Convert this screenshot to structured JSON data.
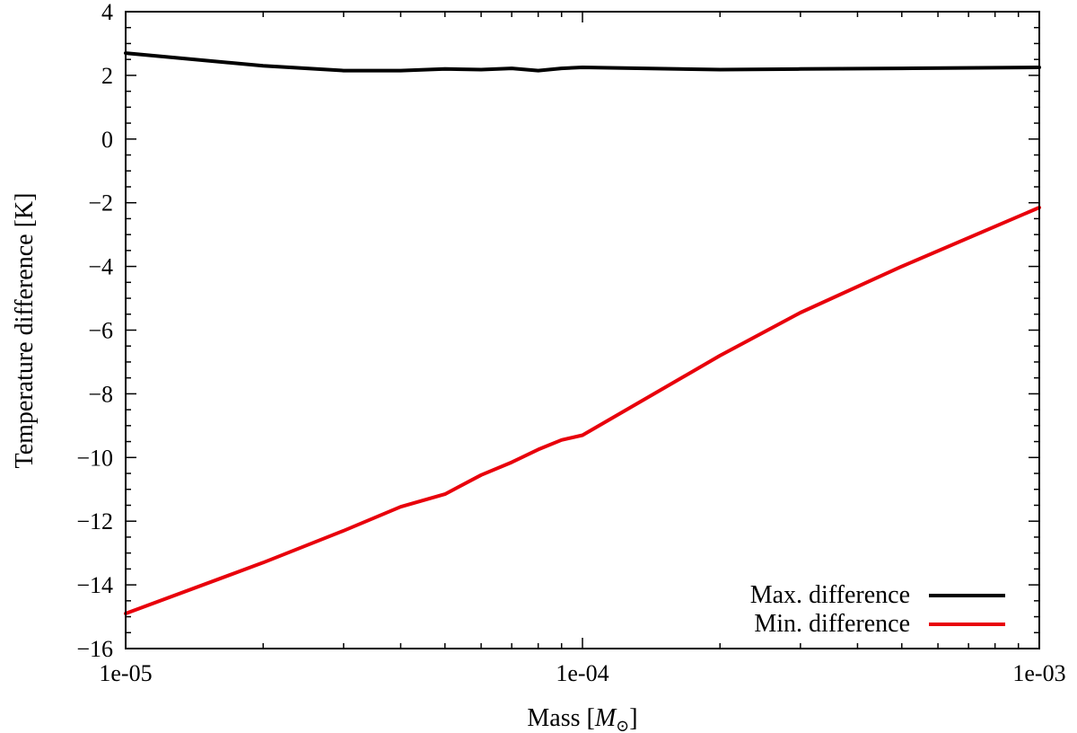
{
  "chart_data": {
    "type": "line",
    "xscale": "log",
    "xlim": [
      1e-05,
      0.001
    ],
    "ylim": [
      -16,
      4
    ],
    "xticks": [
      {
        "value": 1e-05,
        "label": "1e-05"
      },
      {
        "value": 0.0001,
        "label": "1e-04"
      },
      {
        "value": 0.001,
        "label": "1e-03"
      }
    ],
    "yticks": [
      {
        "value": 4,
        "label": "4"
      },
      {
        "value": 2,
        "label": "2"
      },
      {
        "value": 0,
        "label": "0"
      },
      {
        "value": -2,
        "label": "−2"
      },
      {
        "value": -4,
        "label": "−4"
      },
      {
        "value": -6,
        "label": "−6"
      },
      {
        "value": -8,
        "label": "−8"
      },
      {
        "value": -10,
        "label": "−10"
      },
      {
        "value": -12,
        "label": "−12"
      },
      {
        "value": -14,
        "label": "−14"
      },
      {
        "value": -16,
        "label": "−16"
      }
    ],
    "xlabel": "Mass [",
    "xlabel_symbol": "M",
    "xlabel_sub": "⊙",
    "xlabel_end": "]",
    "ylabel": "Temperature difference [K]",
    "legend_position": "bottom-right",
    "series": [
      {
        "name": "Max. difference",
        "color": "#000000",
        "x": [
          1e-05,
          2e-05,
          3e-05,
          4e-05,
          5e-05,
          6e-05,
          7e-05,
          8e-05,
          9e-05,
          0.0001,
          0.0002,
          0.0003,
          0.0005,
          0.001
        ],
        "y": [
          2.7,
          2.3,
          2.15,
          2.15,
          2.2,
          2.18,
          2.22,
          2.15,
          2.22,
          2.25,
          2.18,
          2.2,
          2.22,
          2.25
        ]
      },
      {
        "name": "Min. difference",
        "color": "#e8000b",
        "x": [
          1e-05,
          2e-05,
          3e-05,
          4e-05,
          5e-05,
          6e-05,
          7e-05,
          8e-05,
          9e-05,
          0.0001,
          0.0002,
          0.0003,
          0.0005,
          0.001
        ],
        "y": [
          -14.9,
          -13.3,
          -12.3,
          -11.55,
          -11.15,
          -10.55,
          -10.15,
          -9.75,
          -9.45,
          -9.3,
          -6.8,
          -5.45,
          -4.0,
          -2.15
        ]
      }
    ]
  }
}
